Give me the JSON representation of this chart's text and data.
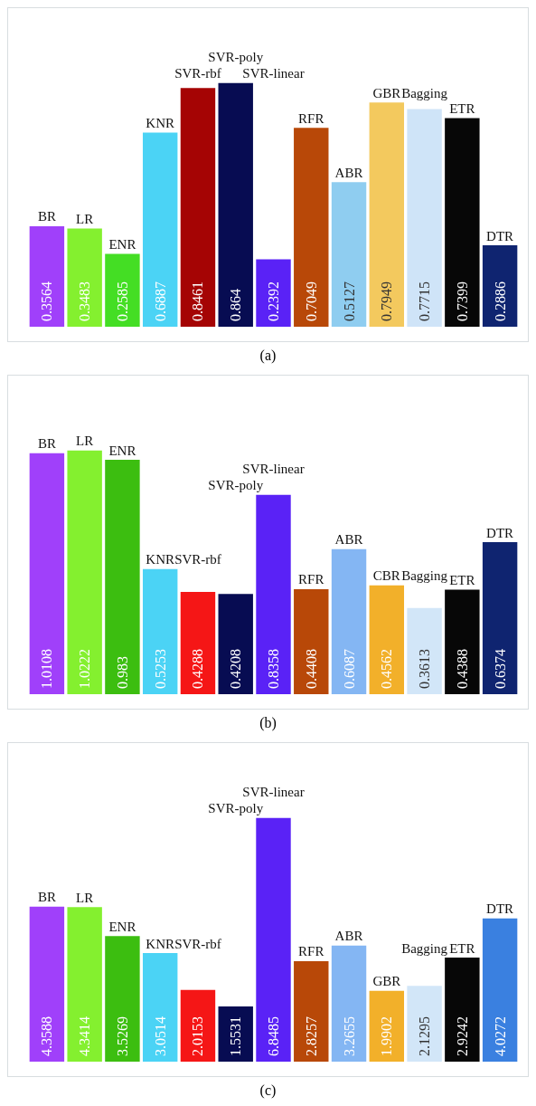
{
  "chart_data": [
    {
      "type": "bar",
      "categories": [
        "BR",
        "LR",
        "ENR",
        "KNR",
        "SVR-rbf",
        "SVR-poly",
        "SVR-linear",
        "RFR",
        "ABR",
        "GBR",
        "Bagging",
        "ETR",
        "DTR"
      ],
      "values": [
        0.3564,
        0.3483,
        0.2585,
        0.6887,
        0.8461,
        0.864,
        0.2392,
        0.7049,
        0.5127,
        0.7949,
        0.7715,
        0.7399,
        0.2886
      ],
      "colors": [
        "#a040fa",
        "#84f02f",
        "#44de24",
        "#4bd3f5",
        "#a50404",
        "#070c52",
        "#5a22f6",
        "#b84808",
        "#8fcdf0",
        "#f3c95e",
        "#cfe4f8",
        "#070707",
        "#0f2470"
      ],
      "data_labels": true,
      "annotations": [
        "(a)"
      ]
    },
    {
      "type": "bar",
      "categories": [
        "BR",
        "LR",
        "ENR",
        "KNR",
        "SVR-rbf",
        "SVR-poly",
        "SVR-linear",
        "RFR",
        "ABR",
        "CBR",
        "Bagging",
        "ETR",
        "DTR"
      ],
      "values": [
        1.0108,
        1.0222,
        0.983,
        0.5253,
        0.4288,
        0.4208,
        0.8358,
        0.4408,
        0.6087,
        0.4562,
        0.3613,
        0.4388,
        0.6374
      ],
      "colors": [
        "#a040fa",
        "#84f02f",
        "#3cbe10",
        "#4bd3f5",
        "#f51616",
        "#070c52",
        "#5a22f6",
        "#b84808",
        "#84b6f3",
        "#f2b02a",
        "#d2e6f8",
        "#070707",
        "#0f2470"
      ],
      "data_labels": true,
      "annotations": [
        "(b)"
      ]
    },
    {
      "type": "bar",
      "categories": [
        "BR",
        "LR",
        "ENR",
        "KNR",
        "SVR-rbf",
        "SVR-poly",
        "SVR-linear",
        "RFR",
        "ABR",
        "GBR",
        "Bagging",
        "ETR",
        "DTR"
      ],
      "values": [
        4.3588,
        4.3414,
        3.5269,
        3.0514,
        2.0153,
        1.5531,
        6.8485,
        2.8257,
        3.2655,
        1.9902,
        2.1295,
        2.9242,
        4.0272
      ],
      "colors": [
        "#a040fa",
        "#84f02f",
        "#3cbe10",
        "#4bd3f5",
        "#f51616",
        "#070c52",
        "#5a22f6",
        "#b84808",
        "#84b6f3",
        "#f2b02a",
        "#d2e6f8",
        "#070707",
        "#3a80e0"
      ],
      "data_labels": true,
      "annotations": [
        "(c)"
      ]
    }
  ]
}
